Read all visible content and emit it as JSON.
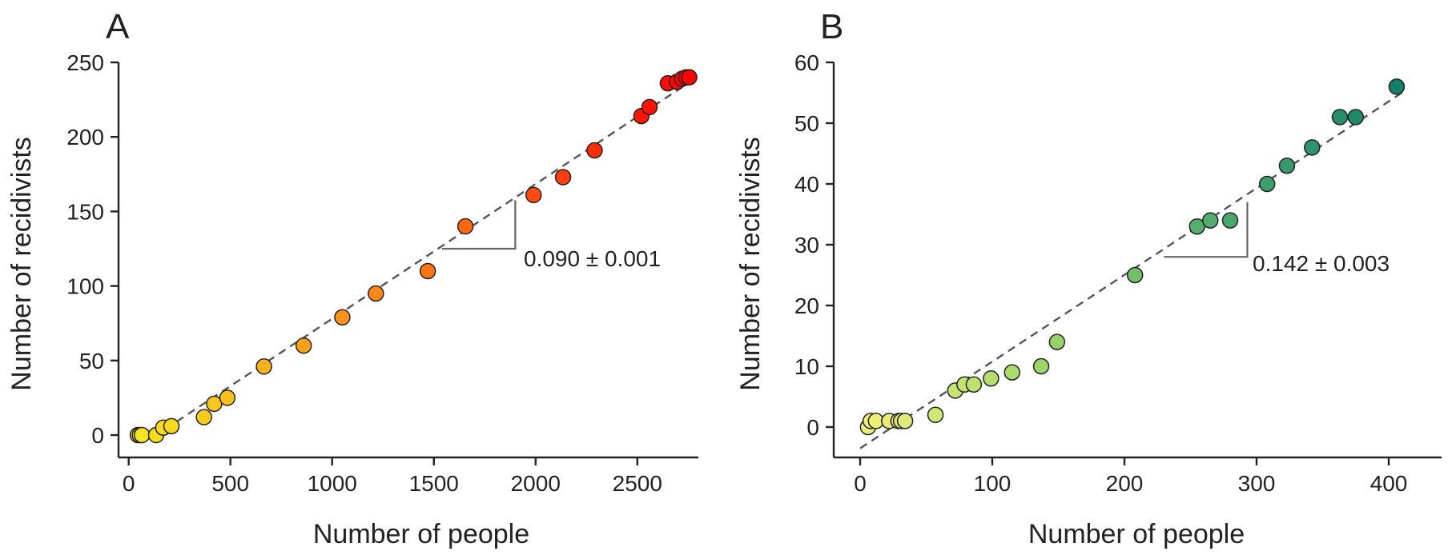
{
  "chart_data": [
    {
      "type": "scatter",
      "panel": "A",
      "xlabel": "Number of people",
      "ylabel": "Number of recidivists",
      "xlim": [
        -50,
        2800
      ],
      "ylim": [
        -15,
        250
      ],
      "xticks": [
        0,
        500,
        1000,
        1500,
        2000,
        2500
      ],
      "yticks": [
        0,
        50,
        100,
        150,
        200,
        250
      ],
      "color_scale": [
        "#f5e61f",
        "#ff9a1a",
        "#ff5a10",
        "#ff0000"
      ],
      "points": [
        {
          "x": 45,
          "y": 0
        },
        {
          "x": 55,
          "y": 0
        },
        {
          "x": 65,
          "y": 0
        },
        {
          "x": 135,
          "y": 0
        },
        {
          "x": 170,
          "y": 5
        },
        {
          "x": 210,
          "y": 6
        },
        {
          "x": 370,
          "y": 12
        },
        {
          "x": 420,
          "y": 21
        },
        {
          "x": 485,
          "y": 25
        },
        {
          "x": 665,
          "y": 46
        },
        {
          "x": 860,
          "y": 60
        },
        {
          "x": 1050,
          "y": 79
        },
        {
          "x": 1215,
          "y": 95
        },
        {
          "x": 1470,
          "y": 110
        },
        {
          "x": 1655,
          "y": 140
        },
        {
          "x": 1990,
          "y": 161
        },
        {
          "x": 2135,
          "y": 173
        },
        {
          "x": 2290,
          "y": 191
        },
        {
          "x": 2520,
          "y": 214
        },
        {
          "x": 2560,
          "y": 220
        },
        {
          "x": 2650,
          "y": 236
        },
        {
          "x": 2695,
          "y": 237
        },
        {
          "x": 2720,
          "y": 239
        },
        {
          "x": 2740,
          "y": 240
        },
        {
          "x": 2755,
          "y": 240
        }
      ],
      "fit": {
        "x": [
          180,
          2760
        ],
        "y": [
          4,
          237
        ]
      },
      "slope_marker": {
        "x": [
          1540,
          1900
        ],
        "y": [
          125,
          157.5
        ]
      },
      "annotation": "0.090 ± 0.001"
    },
    {
      "type": "scatter",
      "panel": "B",
      "xlabel": "Number of people",
      "ylabel": "Number of recidivists",
      "xlim": [
        -20,
        440
      ],
      "ylim": [
        -5,
        60
      ],
      "xticks": [
        0,
        100,
        200,
        300,
        400
      ],
      "yticks": [
        0,
        10,
        20,
        30,
        40,
        50,
        60
      ],
      "color_scale": [
        "#f2f07a",
        "#9bd56a",
        "#4caa6e",
        "#128068"
      ],
      "points": [
        {
          "x": 6,
          "y": 0
        },
        {
          "x": 8,
          "y": 1
        },
        {
          "x": 12,
          "y": 1
        },
        {
          "x": 22,
          "y": 1
        },
        {
          "x": 29,
          "y": 1
        },
        {
          "x": 31,
          "y": 1
        },
        {
          "x": 34,
          "y": 1
        },
        {
          "x": 57,
          "y": 2
        },
        {
          "x": 72,
          "y": 6
        },
        {
          "x": 79,
          "y": 7
        },
        {
          "x": 86,
          "y": 7
        },
        {
          "x": 99,
          "y": 8
        },
        {
          "x": 115,
          "y": 9
        },
        {
          "x": 137,
          "y": 10
        },
        {
          "x": 149,
          "y": 14
        },
        {
          "x": 208,
          "y": 25
        },
        {
          "x": 255,
          "y": 33
        },
        {
          "x": 265,
          "y": 34
        },
        {
          "x": 280,
          "y": 34
        },
        {
          "x": 308,
          "y": 40
        },
        {
          "x": 323,
          "y": 43
        },
        {
          "x": 342,
          "y": 46
        },
        {
          "x": 363,
          "y": 51
        },
        {
          "x": 375,
          "y": 51
        },
        {
          "x": 406,
          "y": 56
        }
      ],
      "fit": {
        "x": [
          0,
          410
        ],
        "y": [
          -3.5,
          55
        ]
      },
      "slope_marker": {
        "x": [
          230,
          293
        ],
        "y": [
          28,
          37
        ]
      },
      "annotation": "0.142 ± 0.003"
    }
  ]
}
